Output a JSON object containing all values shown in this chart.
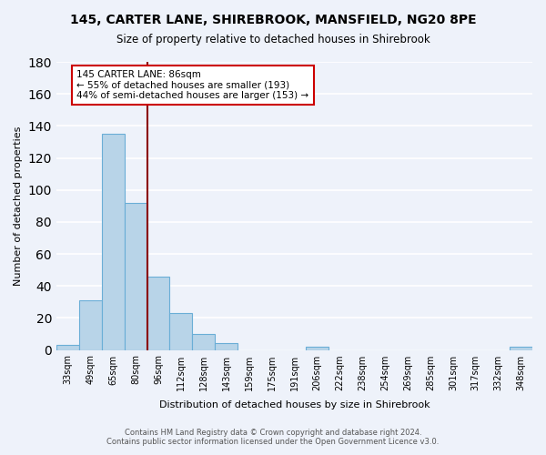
{
  "title": "145, CARTER LANE, SHIREBROOK, MANSFIELD, NG20 8PE",
  "subtitle": "Size of property relative to detached houses in Shirebrook",
  "xlabel": "Distribution of detached houses by size in Shirebrook",
  "ylabel": "Number of detached properties",
  "footnote1": "Contains HM Land Registry data © Crown copyright and database right 2024.",
  "footnote2": "Contains public sector information licensed under the Open Government Licence v3.0.",
  "categories": [
    "33sqm",
    "49sqm",
    "65sqm",
    "80sqm",
    "96sqm",
    "112sqm",
    "128sqm",
    "143sqm",
    "159sqm",
    "175sqm",
    "191sqm",
    "206sqm",
    "222sqm",
    "238sqm",
    "254sqm",
    "269sqm",
    "285sqm",
    "301sqm",
    "317sqm",
    "332sqm",
    "348sqm"
  ],
  "values": [
    3,
    31,
    135,
    92,
    46,
    23,
    10,
    4,
    0,
    0,
    0,
    2,
    0,
    0,
    0,
    0,
    0,
    0,
    0,
    0,
    2
  ],
  "bar_color": "#b8d4e8",
  "bar_edge_color": "#6aaed6",
  "ylim": [
    0,
    180
  ],
  "yticks": [
    0,
    20,
    40,
    60,
    80,
    100,
    120,
    140,
    160,
    180
  ],
  "property_line_color": "#8b0000",
  "annotation_title": "145 CARTER LANE: 86sqm",
  "annotation_line1": "← 55% of detached houses are smaller (193)",
  "annotation_line2": "44% of semi-detached houses are larger (153) →",
  "annotation_box_color": "#ffffff",
  "annotation_box_edge": "#cc0000",
  "background_color": "#eef2fa",
  "grid_color": "#ffffff"
}
